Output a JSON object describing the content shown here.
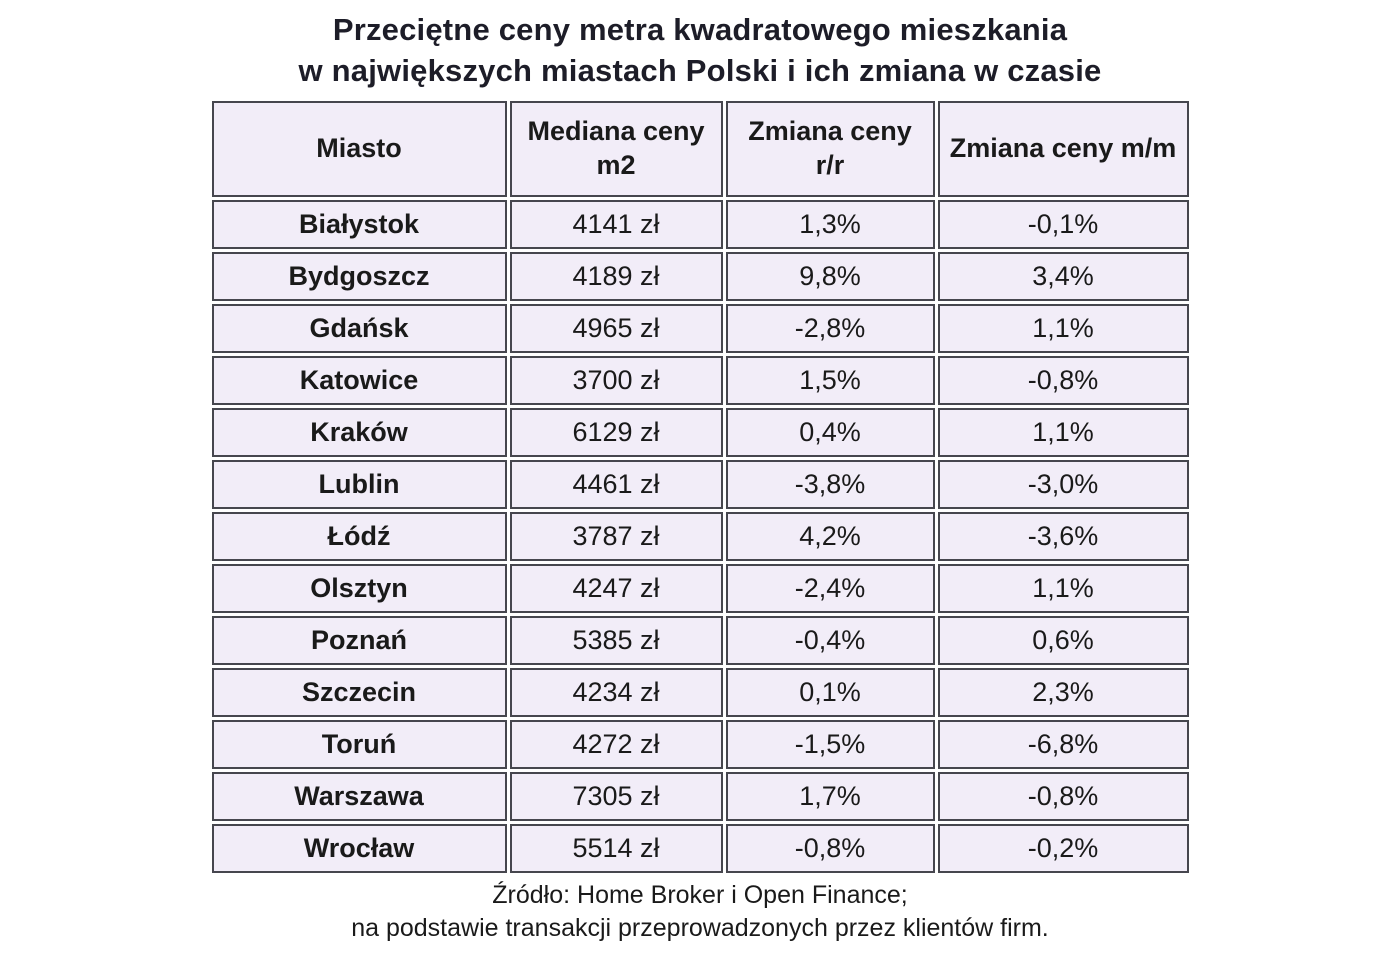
{
  "title": {
    "line1": "Przeciętne ceny metra kwadratowego mieszkania",
    "line2": "w największych miastach Polski i ich zmiana w czasie"
  },
  "table": {
    "headers": [
      "Miasto",
      "Mediana ceny m2",
      "Zmiana ceny r/r",
      "Zmiana ceny m/m"
    ],
    "rows": [
      [
        "Białystok",
        "4141 zł",
        "1,3%",
        "-0,1%"
      ],
      [
        "Bydgoszcz",
        "4189 zł",
        "9,8%",
        "3,4%"
      ],
      [
        "Gdańsk",
        "4965 zł",
        "-2,8%",
        "1,1%"
      ],
      [
        "Katowice",
        "3700 zł",
        "1,5%",
        "-0,8%"
      ],
      [
        "Kraków",
        "6129 zł",
        "0,4%",
        "1,1%"
      ],
      [
        "Lublin",
        "4461 zł",
        "-3,8%",
        "-3,0%"
      ],
      [
        "Łódź",
        "3787 zł",
        "4,2%",
        "-3,6%"
      ],
      [
        "Olsztyn",
        "4247 zł",
        "-2,4%",
        "1,1%"
      ],
      [
        "Poznań",
        "5385 zł",
        "-0,4%",
        "0,6%"
      ],
      [
        "Szczecin",
        "4234 zł",
        "0,1%",
        "2,3%"
      ],
      [
        "Toruń",
        "4272 zł",
        "-1,5%",
        "-6,8%"
      ],
      [
        "Warszawa",
        "7305 zł",
        "1,7%",
        "-0,8%"
      ],
      [
        "Wrocław",
        "5514 zł",
        "-0,8%",
        "-0,2%"
      ]
    ]
  },
  "footer": {
    "line1": "Źródło: Home Broker i Open Finance;",
    "line2": "na podstawie transakcji przeprowadzonych przez klientów firm."
  },
  "colors": {
    "cell_background": "#f2edf8",
    "border": "#46464e",
    "text": "#1a1a1a",
    "page_background": "#ffffff"
  },
  "chart_data": {
    "type": "table",
    "title": "Przeciętne ceny metra kwadratowego mieszkania w największych miastach Polski i ich zmiana w czasie",
    "columns": [
      "Miasto",
      "Mediana ceny m2",
      "Zmiana ceny r/r",
      "Zmiana ceny m/m"
    ],
    "cities": [
      "Białystok",
      "Bydgoszcz",
      "Gdańsk",
      "Katowice",
      "Kraków",
      "Lublin",
      "Łódź",
      "Olsztyn",
      "Poznań",
      "Szczecin",
      "Toruń",
      "Warszawa",
      "Wrocław"
    ],
    "median_price_zl": [
      4141,
      4189,
      4965,
      3700,
      6129,
      4461,
      3787,
      4247,
      5385,
      4234,
      4272,
      7305,
      5514
    ],
    "change_yoy_pct": [
      1.3,
      9.8,
      -2.8,
      1.5,
      0.4,
      -3.8,
      4.2,
      -2.4,
      -0.4,
      0.1,
      -1.5,
      1.7,
      -0.8
    ],
    "change_mom_pct": [
      -0.1,
      3.4,
      1.1,
      -0.8,
      1.1,
      -3.0,
      -3.6,
      1.1,
      0.6,
      2.3,
      -6.8,
      -0.8,
      -0.2
    ],
    "source": "Źródło: Home Broker i Open Finance; na podstawie transakcji przeprowadzonych przez klientów firm."
  }
}
